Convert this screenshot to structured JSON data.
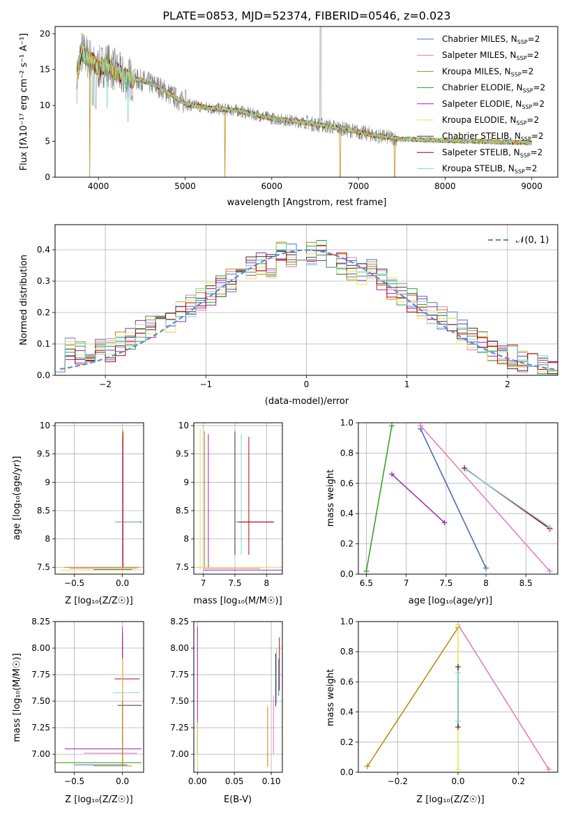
{
  "colors": [
    "#4472c4",
    "#e377c2",
    "#b8860b",
    "#2ca02c",
    "#9b27b0",
    "#e5e84a",
    "#333333",
    "#c00000",
    "#7fd6d6"
  ],
  "chart_data": [
    {
      "id": "spectrum",
      "type": "line",
      "title": "PLATE=0853, MJD=52374, FIBERID=0546, z=0.023",
      "xlabel": "wavelength [Angstrom, rest frame]",
      "ylabel": "Flux [fλ10⁻¹⁷ erg cm⁻² s⁻¹ A⁻¹]",
      "xlim": [
        3500,
        9300
      ],
      "ylim": [
        0,
        21
      ],
      "xticks": [
        4000,
        5000,
        6000,
        7000,
        8000,
        9000
      ],
      "yticks": [
        0,
        5,
        10,
        15,
        20
      ],
      "legend_position": "top-right",
      "continuum_x": [
        3750,
        3800,
        3900,
        4000,
        4100,
        4300,
        4500,
        4700,
        5000,
        5300,
        5600,
        6000,
        6400,
        6800,
        7200,
        7500
      ],
      "continuum_y": [
        13.5,
        17.5,
        16.5,
        15.2,
        15.8,
        13.8,
        13.5,
        12.6,
        10.2,
        9.6,
        9.3,
        8.2,
        7.6,
        6.8,
        5.8,
        5.3
      ],
      "data_end_x": 7450,
      "model_end_x": 9000,
      "model_end_y": 4.8,
      "series": [
        {
          "name": "Chabrier MILES, N",
          "sub": "SSP",
          "suffix": "=2"
        },
        {
          "name": "Salpeter MILES, N",
          "sub": "SSP",
          "suffix": "=2"
        },
        {
          "name": "Kroupa MILES, N",
          "sub": "SSP",
          "suffix": "=2"
        },
        {
          "name": "Chabrier ELODIE, N",
          "sub": "SSP",
          "suffix": "=2"
        },
        {
          "name": "Salpeter ELODIE, N",
          "sub": "SSP",
          "suffix": "=2"
        },
        {
          "name": "Kroupa ELODIE, N",
          "sub": "SSP",
          "suffix": "=2"
        },
        {
          "name": "Chabrier STELIB, N",
          "sub": "SSP",
          "suffix": "=2"
        },
        {
          "name": "Salpeter STELIB, N",
          "sub": "SSP",
          "suffix": "=2"
        },
        {
          "name": "Kroupa STELIB, N",
          "sub": "SSP",
          "suffix": "=2"
        }
      ]
    },
    {
      "id": "residuals",
      "type": "line",
      "xlabel": "(data-model)/error",
      "ylabel": "Normed distribution",
      "xlim": [
        -2.5,
        2.5
      ],
      "ylim": [
        0,
        0.48
      ],
      "xticks": [
        -2,
        -1,
        0,
        1,
        2
      ],
      "yticks": [
        0.0,
        0.1,
        0.2,
        0.3,
        0.4
      ],
      "legend": "𝒩(0, 1)",
      "legend_position": "top-right",
      "bin_width": 0.1,
      "bins_start": -2.5,
      "hist_base": [
        0.05,
        0.08,
        0.07,
        0.08,
        0.09,
        0.08,
        0.1,
        0.12,
        0.14,
        0.16,
        0.17,
        0.16,
        0.2,
        0.22,
        0.24,
        0.26,
        0.28,
        0.3,
        0.32,
        0.34,
        0.36,
        0.35,
        0.4,
        0.38,
        0.37,
        0.39,
        0.4,
        0.38,
        0.36,
        0.34,
        0.32,
        0.33,
        0.3,
        0.28,
        0.26,
        0.24,
        0.22,
        0.2,
        0.18,
        0.17,
        0.14,
        0.12,
        0.1,
        0.08,
        0.07,
        0.06,
        0.05,
        0.04,
        0.03,
        0.02
      ]
    },
    {
      "id": "age-vs-Z",
      "type": "scatter",
      "xlabel": "Z [log₁₀(Z/Z☉)]",
      "ylabel": "age  [log₁₀(age/yr)]",
      "xlim": [
        -0.7,
        0.22
      ],
      "ylim": [
        7.38,
        10.05
      ],
      "xticks": [
        -0.5,
        0.0
      ],
      "xticklabels": [
        "−0.5",
        "0.0"
      ],
      "yticks": [
        7.5,
        8.0,
        8.5,
        9.0,
        9.5,
        10.0
      ]
    },
    {
      "id": "age-vs-mass",
      "type": "scatter",
      "xlabel": "mass [log₁₀(M/M☉)]",
      "xlim": [
        6.85,
        8.25
      ],
      "ylim": [
        7.38,
        10.05
      ],
      "xticks": [
        7.0,
        7.5,
        8.0
      ],
      "yticks": [
        7.5,
        8.0,
        8.5,
        9.0,
        9.5,
        10.0
      ]
    },
    {
      "id": "massweight-vs-age",
      "type": "line",
      "xlabel": "age  [log₁₀(age/yr)]",
      "ylabel": "mass weight",
      "xlim": [
        6.4,
        8.9
      ],
      "ylim": [
        0,
        1.0
      ],
      "xticks": [
        6.5,
        7.0,
        7.5,
        8.0,
        8.5
      ],
      "yticks": [
        0.0,
        0.2,
        0.4,
        0.6,
        0.8,
        1.0
      ],
      "series": [
        {
          "x": [
            6.5,
            6.82
          ],
          "y": [
            0.02,
            0.98
          ]
        },
        {
          "x": [
            6.5,
            6.82
          ],
          "y": [
            0.02,
            0.98
          ]
        },
        {
          "x": [
            7.18,
            8.0
          ],
          "y": [
            0.96,
            0.04
          ]
        },
        {
          "x": [
            7.18,
            8.0
          ],
          "y": [
            0.96,
            0.04
          ]
        },
        {
          "x": [
            7.18,
            8.8
          ],
          "y": [
            0.98,
            0.02
          ]
        },
        {
          "x": [
            6.82,
            7.48
          ],
          "y": [
            0.66,
            0.34
          ]
        },
        {
          "x": [
            7.73,
            8.8
          ],
          "y": [
            0.7,
            0.3
          ]
        },
        {
          "x": [
            7.73,
            8.8
          ],
          "y": [
            0.7,
            0.3
          ]
        },
        {
          "x": [
            7.75,
            8.8
          ],
          "y": [
            0.69,
            0.31
          ]
        }
      ]
    },
    {
      "id": "mass-vs-Z",
      "type": "scatter",
      "xlabel": "Z [log₁₀(Z/Z☉)]",
      "ylabel": "mass [log₁₀(M/M☉)]",
      "xlim": [
        -0.7,
        0.22
      ],
      "ylim": [
        6.83,
        8.25
      ],
      "xticks": [
        -0.5,
        0.0
      ],
      "xticklabels": [
        "−0.5",
        "0.0"
      ],
      "yticks": [
        7.0,
        7.25,
        7.5,
        7.75,
        8.0,
        8.25
      ],
      "yticklabels": [
        "7.00",
        "7.25",
        "7.50",
        "7.75",
        "8.00",
        "8.25"
      ]
    },
    {
      "id": "mass-vs-EBV",
      "type": "scatter",
      "xlabel": "E(B-V)",
      "xlim": [
        -0.005,
        0.115
      ],
      "ylim": [
        6.83,
        8.25
      ],
      "xticks": [
        0.0,
        0.05,
        0.1
      ],
      "xticklabels": [
        "0.00",
        "0.05",
        "0.10"
      ],
      "yticks": [
        7.0,
        7.25,
        7.5,
        7.75,
        8.0,
        8.25
      ],
      "yticklabels": [
        "7.00",
        "7.25",
        "7.50",
        "7.75",
        "8.00",
        "8.25"
      ]
    },
    {
      "id": "massweight-vs-Z",
      "type": "line",
      "xlabel": "Z [log₁₀(Z/Z☉)]",
      "ylabel": "mass weight",
      "xlim": [
        -0.33,
        0.33
      ],
      "ylim": [
        0,
        1.0
      ],
      "xticks": [
        -0.2,
        0.0,
        0.2
      ],
      "xticklabels": [
        "−0.2",
        "0.0",
        "0.2"
      ],
      "yticks": [
        0.0,
        0.2,
        0.4,
        0.6,
        0.8,
        1.0
      ],
      "series": [
        {
          "x": [
            -0.3,
            0.0
          ],
          "y": [
            0.04,
            0.96
          ]
        },
        {
          "x": [
            0.0,
            0.3
          ],
          "y": [
            0.98,
            0.02
          ]
        },
        {
          "x": [
            0.0,
            0.0
          ],
          "y": [
            0.02,
            0.98
          ]
        },
        {
          "x": [
            0.0,
            0.0
          ],
          "y": [
            0.3,
            0.7
          ]
        },
        {
          "x": [
            0.0,
            0.0
          ],
          "y": [
            0.34,
            0.66
          ]
        }
      ]
    }
  ]
}
